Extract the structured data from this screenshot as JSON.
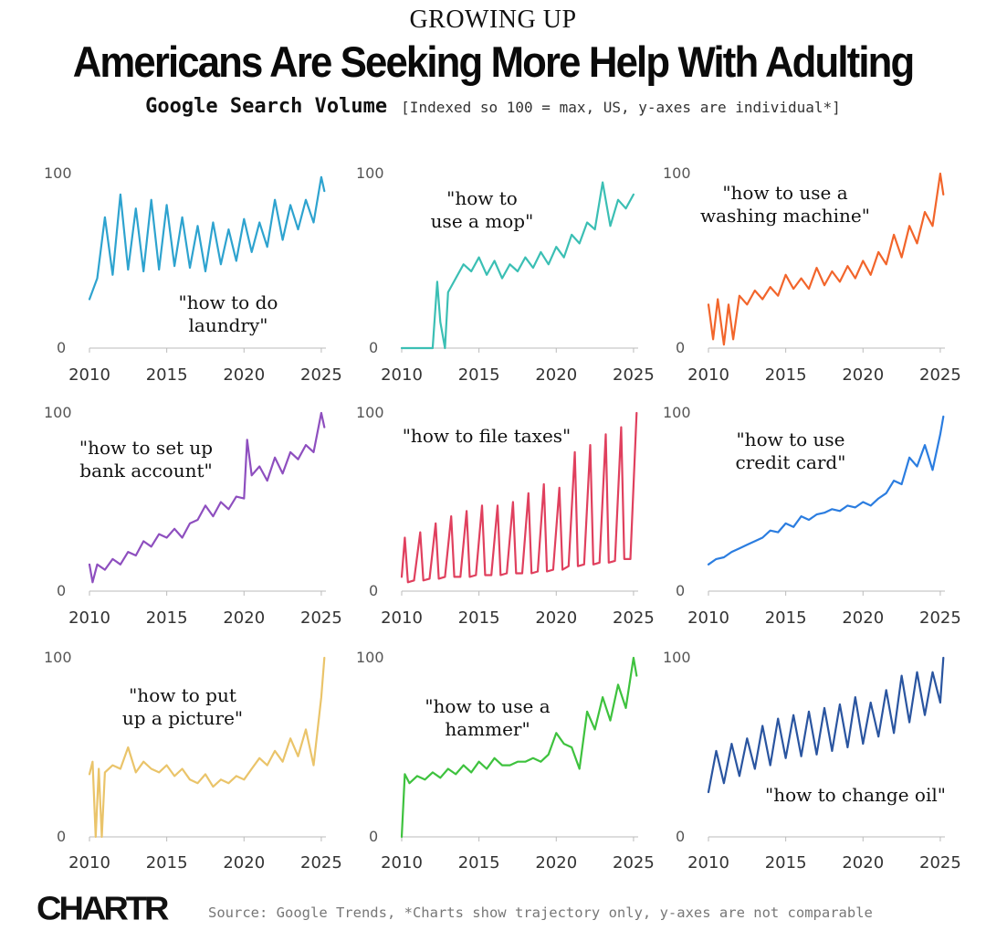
{
  "header": {
    "kicker": "GROWING UP",
    "title": "Americans Are Seeking More Help With Adulting",
    "subtitle_strong": "Google Search Volume",
    "subtitle_note": "[Indexed so 100 = max, US, y-axes are individual*]"
  },
  "footer": {
    "logo": "CHARTR",
    "source": "Source: Google Trends, *Charts show trajectory only, y-axes are not comparable"
  },
  "chart_data": [
    {
      "type": "line",
      "title": "\"how to do laundry\"",
      "label_lines": [
        "\"how to do",
        "laundry\""
      ],
      "color": "#2ea3cf",
      "xlim": [
        2010,
        2025.3
      ],
      "ylim": [
        0,
        100
      ],
      "xticks": [
        2010,
        2015,
        2020,
        2025
      ],
      "yticks": [
        0,
        100
      ],
      "x": [
        2010.0,
        2010.5,
        2011.0,
        2011.5,
        2012.0,
        2012.5,
        2013.0,
        2013.5,
        2014.0,
        2014.5,
        2015.0,
        2015.5,
        2016.0,
        2016.5,
        2017.0,
        2017.5,
        2018.0,
        2018.5,
        2019.0,
        2019.5,
        2020.0,
        2020.5,
        2021.0,
        2021.5,
        2022.0,
        2022.5,
        2023.0,
        2023.5,
        2024.0,
        2024.5,
        2025.0,
        2025.2
      ],
      "y": [
        28,
        40,
        75,
        42,
        88,
        45,
        80,
        44,
        85,
        45,
        82,
        47,
        75,
        46,
        70,
        44,
        72,
        48,
        68,
        50,
        74,
        55,
        72,
        58,
        85,
        62,
        82,
        68,
        85,
        72,
        98,
        90
      ]
    },
    {
      "type": "line",
      "title": "\"how to use a mop\"",
      "label_lines": [
        "\"how to",
        "use a mop\""
      ],
      "color": "#3bbfb4",
      "xlim": [
        2010,
        2025.3
      ],
      "ylim": [
        0,
        100
      ],
      "xticks": [
        2010,
        2015,
        2020,
        2025
      ],
      "yticks": [
        0,
        100
      ],
      "x": [
        2010.0,
        2011.0,
        2012.0,
        2012.3,
        2012.5,
        2012.8,
        2013.0,
        2013.5,
        2014.0,
        2014.5,
        2015.0,
        2015.5,
        2016.0,
        2016.5,
        2017.0,
        2017.5,
        2018.0,
        2018.5,
        2019.0,
        2019.5,
        2020.0,
        2020.5,
        2021.0,
        2021.5,
        2022.0,
        2022.5,
        2023.0,
        2023.5,
        2024.0,
        2024.5,
        2025.0
      ],
      "y": [
        0,
        0,
        0,
        38,
        15,
        0,
        32,
        40,
        48,
        44,
        52,
        42,
        50,
        40,
        48,
        44,
        52,
        46,
        55,
        48,
        58,
        52,
        65,
        60,
        72,
        68,
        95,
        70,
        85,
        80,
        88
      ]
    },
    {
      "type": "line",
      "title": "\"how to use a washing machine\"",
      "label_lines": [
        "\"how to use a",
        "washing machine\""
      ],
      "color": "#f2652b",
      "xlim": [
        2010,
        2025.3
      ],
      "ylim": [
        0,
        100
      ],
      "xticks": [
        2010,
        2015,
        2020,
        2025
      ],
      "yticks": [
        0,
        100
      ],
      "x": [
        2010.0,
        2010.3,
        2010.6,
        2011.0,
        2011.3,
        2011.6,
        2012.0,
        2012.5,
        2013.0,
        2013.5,
        2014.0,
        2014.5,
        2015.0,
        2015.5,
        2016.0,
        2016.5,
        2017.0,
        2017.5,
        2018.0,
        2018.5,
        2019.0,
        2019.5,
        2020.0,
        2020.5,
        2021.0,
        2021.5,
        2022.0,
        2022.5,
        2023.0,
        2023.5,
        2024.0,
        2024.5,
        2025.0,
        2025.2
      ],
      "y": [
        25,
        5,
        28,
        2,
        25,
        5,
        30,
        25,
        33,
        28,
        35,
        30,
        42,
        34,
        40,
        34,
        46,
        36,
        44,
        38,
        47,
        40,
        50,
        42,
        55,
        48,
        65,
        52,
        70,
        60,
        78,
        70,
        100,
        88
      ]
    },
    {
      "type": "line",
      "title": "\"how to set up bank account\"",
      "label_lines": [
        "\"how to set up",
        "bank account\""
      ],
      "color": "#8e4fbf",
      "xlim": [
        2010,
        2025.3
      ],
      "ylim": [
        0,
        100
      ],
      "xticks": [
        2010,
        2015,
        2020,
        2025
      ],
      "yticks": [
        0,
        100
      ],
      "x": [
        2010.0,
        2010.2,
        2010.5,
        2011.0,
        2011.5,
        2012.0,
        2012.5,
        2013.0,
        2013.5,
        2014.0,
        2014.5,
        2015.0,
        2015.5,
        2016.0,
        2016.5,
        2017.0,
        2017.5,
        2018.0,
        2018.5,
        2019.0,
        2019.5,
        2020.0,
        2020.2,
        2020.5,
        2021.0,
        2021.5,
        2022.0,
        2022.5,
        2023.0,
        2023.5,
        2024.0,
        2024.5,
        2025.0,
        2025.2
      ],
      "y": [
        15,
        5,
        15,
        12,
        18,
        15,
        22,
        20,
        28,
        25,
        32,
        30,
        35,
        30,
        38,
        40,
        48,
        42,
        50,
        46,
        53,
        52,
        85,
        65,
        70,
        62,
        75,
        66,
        78,
        74,
        82,
        78,
        100,
        92
      ]
    },
    {
      "type": "line",
      "title": "\"how to file taxes\"",
      "label_lines": [
        "\"how to file taxes\""
      ],
      "color": "#e0405e",
      "xlim": [
        2010,
        2025.3
      ],
      "ylim": [
        0,
        100
      ],
      "xticks": [
        2010,
        2015,
        2020,
        2025
      ],
      "yticks": [
        0,
        100
      ],
      "x": [
        2010.0,
        2010.2,
        2010.4,
        2010.8,
        2011.2,
        2011.4,
        2011.8,
        2012.2,
        2012.4,
        2012.8,
        2013.2,
        2013.4,
        2013.8,
        2014.2,
        2014.4,
        2014.8,
        2015.2,
        2015.4,
        2015.8,
        2016.2,
        2016.4,
        2016.8,
        2017.2,
        2017.4,
        2017.8,
        2018.2,
        2018.4,
        2018.8,
        2019.2,
        2019.4,
        2019.8,
        2020.2,
        2020.4,
        2020.8,
        2021.2,
        2021.4,
        2021.8,
        2022.2,
        2022.4,
        2022.8,
        2023.2,
        2023.4,
        2023.8,
        2024.2,
        2024.4,
        2024.8,
        2025.2
      ],
      "y": [
        8,
        30,
        5,
        6,
        33,
        6,
        7,
        38,
        7,
        8,
        42,
        8,
        8,
        45,
        8,
        9,
        48,
        9,
        9,
        48,
        9,
        10,
        50,
        10,
        10,
        55,
        10,
        11,
        60,
        11,
        12,
        58,
        12,
        14,
        78,
        14,
        15,
        82,
        15,
        16,
        88,
        16,
        17,
        92,
        18,
        18,
        100
      ]
    },
    {
      "type": "line",
      "title": "\"how to use credit card\"",
      "label_lines": [
        "\"how to use",
        "credit card\""
      ],
      "color": "#2b7de0",
      "xlim": [
        2010,
        2025.3
      ],
      "ylim": [
        0,
        100
      ],
      "xticks": [
        2010,
        2015,
        2020,
        2025
      ],
      "yticks": [
        0,
        100
      ],
      "x": [
        2010.0,
        2010.5,
        2011.0,
        2011.5,
        2012.0,
        2012.5,
        2013.0,
        2013.5,
        2014.0,
        2014.5,
        2015.0,
        2015.5,
        2016.0,
        2016.5,
        2017.0,
        2017.5,
        2018.0,
        2018.5,
        2019.0,
        2019.5,
        2020.0,
        2020.5,
        2021.0,
        2021.5,
        2022.0,
        2022.5,
        2023.0,
        2023.5,
        2024.0,
        2024.5,
        2025.0,
        2025.2
      ],
      "y": [
        15,
        18,
        19,
        22,
        24,
        26,
        28,
        30,
        34,
        33,
        38,
        36,
        42,
        40,
        43,
        44,
        46,
        45,
        48,
        47,
        50,
        48,
        52,
        55,
        62,
        60,
        75,
        70,
        82,
        68,
        88,
        98
      ]
    },
    {
      "type": "line",
      "title": "\"how to put up a picture\"",
      "label_lines": [
        "\"how to put",
        "up a picture\""
      ],
      "color": "#eac46a",
      "xlim": [
        2010,
        2025.3
      ],
      "ylim": [
        0,
        100
      ],
      "xticks": [
        2010,
        2015,
        2020,
        2025
      ],
      "yticks": [
        0,
        100
      ],
      "x": [
        2010.0,
        2010.2,
        2010.4,
        2010.6,
        2010.8,
        2011.0,
        2011.5,
        2012.0,
        2012.5,
        2013.0,
        2013.5,
        2014.0,
        2014.5,
        2015.0,
        2015.5,
        2016.0,
        2016.5,
        2017.0,
        2017.5,
        2018.0,
        2018.5,
        2019.0,
        2019.5,
        2020.0,
        2020.5,
        2021.0,
        2021.5,
        2022.0,
        2022.5,
        2023.0,
        2023.5,
        2024.0,
        2024.5,
        2025.0,
        2025.2
      ],
      "y": [
        35,
        42,
        0,
        38,
        0,
        36,
        40,
        38,
        50,
        36,
        42,
        38,
        36,
        40,
        34,
        38,
        32,
        30,
        35,
        28,
        32,
        30,
        34,
        32,
        38,
        44,
        40,
        48,
        42,
        55,
        45,
        60,
        40,
        78,
        100
      ]
    },
    {
      "type": "line",
      "title": "\"how to use a hammer\"",
      "label_lines": [
        "\"how to use a",
        "hammer\""
      ],
      "color": "#3ec23e",
      "xlim": [
        2010,
        2025.3
      ],
      "ylim": [
        0,
        100
      ],
      "xticks": [
        2010,
        2015,
        2020,
        2025
      ],
      "yticks": [
        0,
        100
      ],
      "x": [
        2010.0,
        2010.2,
        2010.5,
        2011.0,
        2011.5,
        2012.0,
        2012.5,
        2013.0,
        2013.5,
        2014.0,
        2014.5,
        2015.0,
        2015.5,
        2016.0,
        2016.5,
        2017.0,
        2017.5,
        2018.0,
        2018.5,
        2019.0,
        2019.5,
        2020.0,
        2020.5,
        2021.0,
        2021.5,
        2022.0,
        2022.5,
        2023.0,
        2023.5,
        2024.0,
        2024.5,
        2025.0,
        2025.2
      ],
      "y": [
        0,
        35,
        30,
        34,
        32,
        36,
        33,
        38,
        35,
        40,
        36,
        42,
        38,
        44,
        40,
        40,
        42,
        42,
        44,
        42,
        46,
        58,
        52,
        50,
        38,
        70,
        60,
        78,
        65,
        85,
        72,
        100,
        90
      ]
    },
    {
      "type": "line",
      "title": "\"how to change oil\"",
      "label_lines": [
        "\"how to change oil\""
      ],
      "color": "#2a55a0",
      "xlim": [
        2010,
        2025.3
      ],
      "ylim": [
        0,
        100
      ],
      "xticks": [
        2010,
        2015,
        2020,
        2025
      ],
      "yticks": [
        0,
        100
      ],
      "x": [
        2010.0,
        2010.5,
        2011.0,
        2011.5,
        2012.0,
        2012.5,
        2013.0,
        2013.5,
        2014.0,
        2014.5,
        2015.0,
        2015.5,
        2016.0,
        2016.5,
        2017.0,
        2017.5,
        2018.0,
        2018.5,
        2019.0,
        2019.5,
        2020.0,
        2020.5,
        2021.0,
        2021.5,
        2022.0,
        2022.5,
        2023.0,
        2023.5,
        2024.0,
        2024.5,
        2025.0,
        2025.2
      ],
      "y": [
        25,
        48,
        30,
        52,
        34,
        55,
        38,
        62,
        40,
        66,
        44,
        68,
        45,
        70,
        46,
        72,
        48,
        74,
        50,
        78,
        52,
        75,
        56,
        82,
        58,
        90,
        64,
        92,
        68,
        92,
        75,
        100
      ]
    }
  ]
}
